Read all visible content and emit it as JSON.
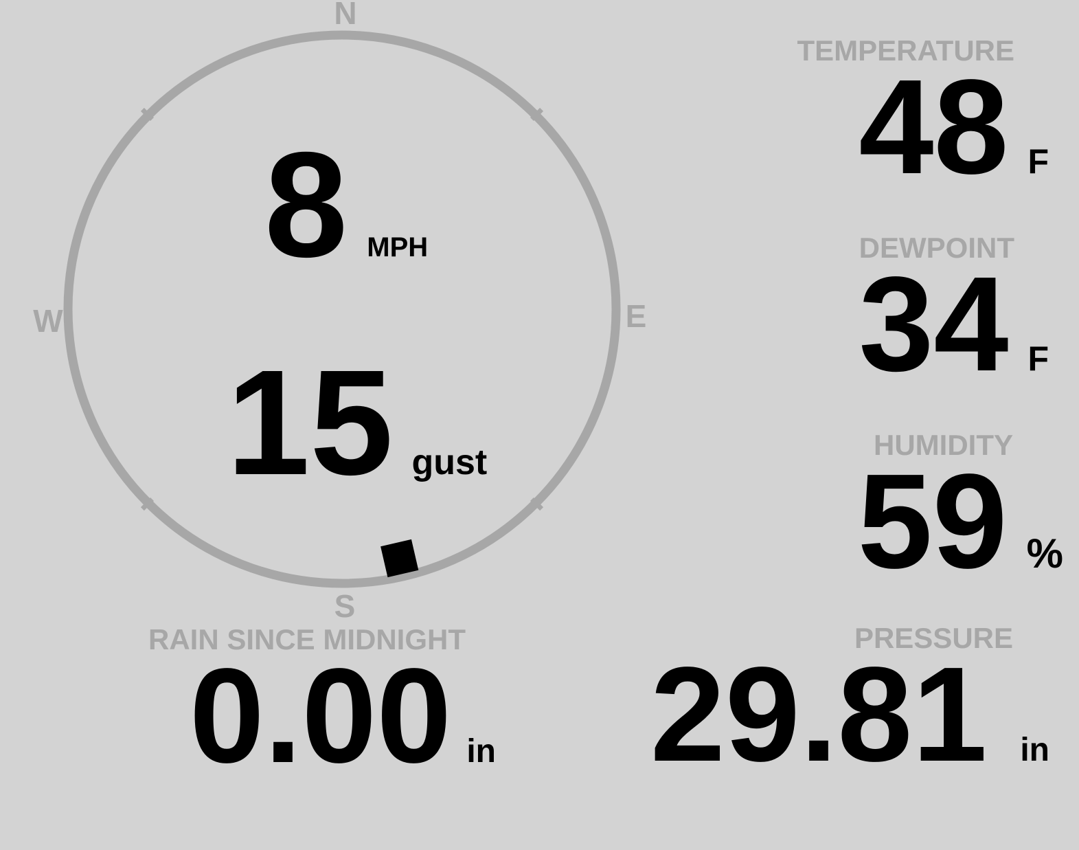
{
  "display": {
    "background_color": "#d3d3d3",
    "muted_color": "#a7a7a7",
    "text_color": "#000000"
  },
  "compass": {
    "cardinals": {
      "north": "N",
      "east": "E",
      "south": "S",
      "west": "W"
    },
    "wind_speed": {
      "value": "8",
      "unit": "MPH"
    },
    "wind_gust": {
      "value": "15",
      "unit": "gust"
    },
    "wind_direction_deg": 167
  },
  "stats": {
    "temperature": {
      "label": "TEMPERATURE",
      "value": "48",
      "unit": "F"
    },
    "dewpoint": {
      "label": "DEWPOINT",
      "value": "34",
      "unit": "F"
    },
    "humidity": {
      "label": "HUMIDITY",
      "value": "59",
      "unit": "%"
    },
    "rain_since_midnight": {
      "label": "RAIN SINCE MIDNIGHT",
      "value": "0.00",
      "unit": "in"
    },
    "pressure": {
      "label": "PRESSURE",
      "value": "29.81",
      "unit": "in"
    }
  }
}
